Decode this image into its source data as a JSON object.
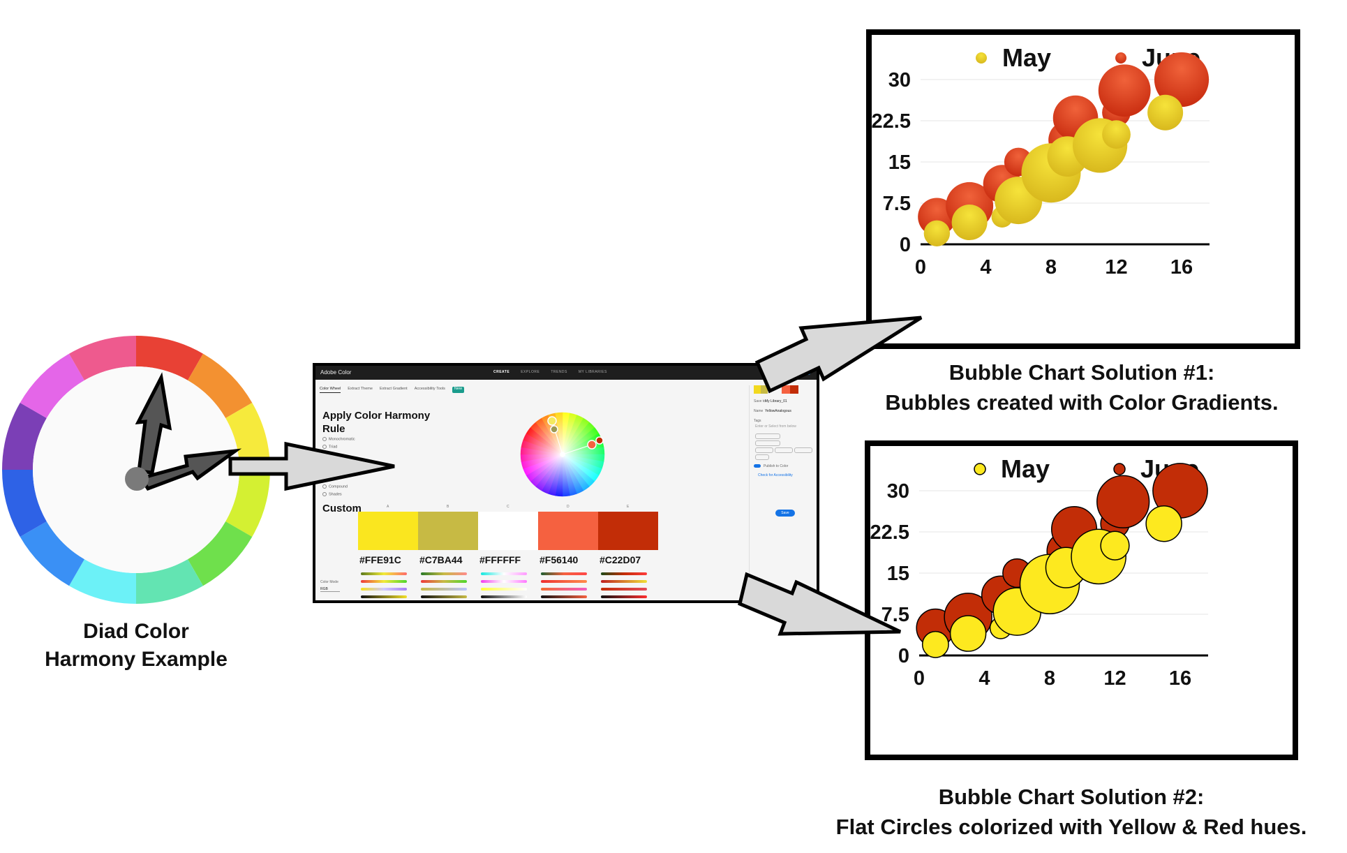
{
  "wheel": {
    "caption_line1": "Diad Color",
    "caption_line2": "Harmony Example",
    "segments": [
      "#e84135",
      "#f39131",
      "#f6ea3c",
      "#d4f032",
      "#6fe04c",
      "#63e4b2",
      "#6cf1f7",
      "#3a90f5",
      "#2e62e6",
      "#7b3fb6",
      "#e466e8",
      "#ee5a8e"
    ]
  },
  "adobe": {
    "brand": "Adobe Color",
    "nav": [
      "CREATE",
      "EXPLORE",
      "TRENDS",
      "MY LIBRARIES"
    ],
    "tabs": [
      "Color Wheel",
      "Extract Theme",
      "Extract Gradient",
      "Accessibility Tools"
    ],
    "new_badge": "New",
    "rule_title_1": "Apply Color Harmony",
    "rule_title_2": "Rule",
    "rule_options": [
      "Monochromatic",
      "Triad",
      "Compound",
      "Shades"
    ],
    "custom_label": "Custom",
    "swatches": [
      {
        "hex": "#FFE91C",
        "color": "#fae61f",
        "slot": "A"
      },
      {
        "hex": "#C7BA44",
        "color": "#c7ba44",
        "slot": "B"
      },
      {
        "hex": "#FFFFFF",
        "color": "#ffffff",
        "slot": "C"
      },
      {
        "hex": "#F56140",
        "color": "#f56140",
        "slot": "D"
      },
      {
        "hex": "#C22D07",
        "color": "#c22d07",
        "slot": "E"
      }
    ],
    "library_label": "Save to",
    "library_value": "My Library_01",
    "name_label": "Name",
    "name_value": "YellowAnalogous",
    "tags_label": "Tags",
    "tags_placeholder": "Enter or Select from below",
    "publish_label": "Publish to Color",
    "accessibility_label": "Check for Accessibility",
    "save_label": "Save",
    "color_mode_label": "Color Mode",
    "color_mode_value": "RGB"
  },
  "chart_data": [
    {
      "type": "scatter",
      "style": "gradient bubbles",
      "title": "",
      "legend": [
        "May",
        "June"
      ],
      "legend_position": "top",
      "xlim": [
        0,
        16
      ],
      "ylim": [
        0,
        30
      ],
      "xticks": [
        "0",
        "4",
        "8",
        "12",
        "16"
      ],
      "yticks": [
        "0",
        "7.5",
        "15",
        "22.5",
        "30"
      ],
      "grid": "horizontal",
      "series": [
        {
          "name": "May",
          "color": "#f1d930",
          "points": [
            [
              1,
              2,
              0.55
            ],
            [
              3,
              4,
              0.75
            ],
            [
              5,
              5,
              0.45
            ],
            [
              6,
              8,
              1.0
            ],
            [
              8,
              13,
              1.25
            ],
            [
              9,
              16,
              0.85
            ],
            [
              11,
              18,
              1.15
            ],
            [
              12,
              20,
              0.6
            ],
            [
              15,
              24,
              0.75
            ]
          ]
        },
        {
          "name": "June",
          "color": "#e0461f",
          "points": [
            [
              1,
              5,
              0.8
            ],
            [
              3,
              7,
              1.0
            ],
            [
              5,
              11,
              0.8
            ],
            [
              6,
              15,
              0.6
            ],
            [
              9,
              19,
              0.8
            ],
            [
              9.5,
              23,
              0.95
            ],
            [
              12,
              24,
              0.6
            ],
            [
              12.5,
              28,
              1.1
            ],
            [
              16,
              30,
              1.15
            ]
          ]
        }
      ]
    },
    {
      "type": "scatter",
      "style": "flat circles",
      "title": "",
      "legend": [
        "May",
        "June"
      ],
      "legend_position": "top",
      "xlim": [
        0,
        16
      ],
      "ylim": [
        0,
        30
      ],
      "xticks": [
        "0",
        "4",
        "8",
        "12",
        "16"
      ],
      "yticks": [
        "0",
        "7.5",
        "15",
        "22.5",
        "30"
      ],
      "grid": "horizontal",
      "series": [
        {
          "name": "May",
          "color": "#fde91f",
          "points": [
            [
              1,
              2,
              0.55
            ],
            [
              3,
              4,
              0.75
            ],
            [
              5,
              5,
              0.45
            ],
            [
              6,
              8,
              1.0
            ],
            [
              8,
              13,
              1.25
            ],
            [
              9,
              16,
              0.85
            ],
            [
              11,
              18,
              1.15
            ],
            [
              12,
              20,
              0.6
            ],
            [
              15,
              24,
              0.75
            ]
          ]
        },
        {
          "name": "June",
          "color": "#c22d07",
          "points": [
            [
              1,
              5,
              0.8
            ],
            [
              3,
              7,
              1.0
            ],
            [
              5,
              11,
              0.8
            ],
            [
              6,
              15,
              0.6
            ],
            [
              9,
              19,
              0.8
            ],
            [
              9.5,
              23,
              0.95
            ],
            [
              12,
              24,
              0.6
            ],
            [
              12.5,
              28,
              1.1
            ],
            [
              16,
              30,
              1.15
            ]
          ]
        }
      ]
    }
  ],
  "captions": {
    "chart1_line1": "Bubble Chart Solution #1:",
    "chart1_line2": "Bubbles created with Color Gradients.",
    "chart2_line1": "Bubble Chart Solution #2:",
    "chart2_line2": "Flat Circles colorized with Yellow & Red hues."
  }
}
